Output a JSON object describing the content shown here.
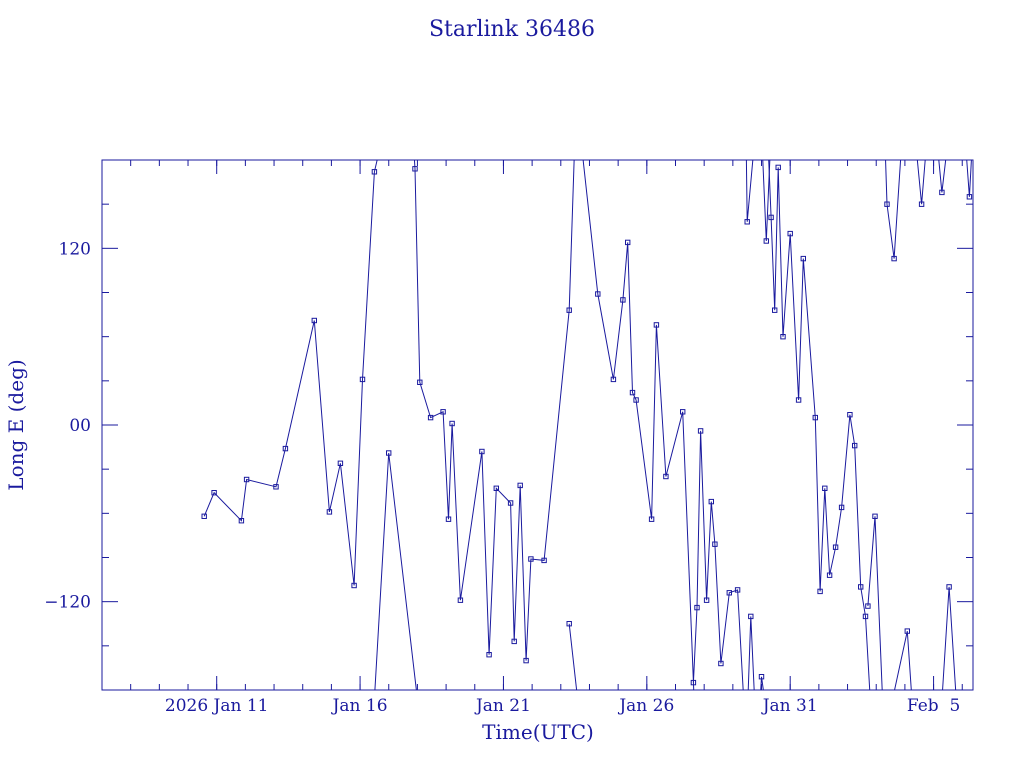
{
  "chart_data": {
    "type": "line",
    "title": "Starlink 36486",
    "xlabel": "Time(UTC)",
    "ylabel": "Long E (deg)",
    "x_tick_labels": [
      "2026 Jan 11",
      "Jan 16",
      "Jan 21",
      "Jan 26",
      "Jan 31",
      "Feb  5"
    ],
    "x_ticks": [
      "2026-01-11",
      "2026-01-16",
      "2026-01-21",
      "2026-01-26",
      "2026-01-31",
      "2026-02-05"
    ],
    "y_tick_labels": [
      "120",
      "00",
      "−120"
    ],
    "y_ticks": [
      120,
      0,
      -120
    ],
    "xlim": [
      "2026-01-07T00:00",
      "2026-02-06T09:00"
    ],
    "ylim": [
      -180,
      180
    ],
    "grid": false,
    "colors": {
      "line": "#1a1a9e",
      "axes": "#1a1a9e",
      "text": "#1a1a9e",
      "background": "#ffffff"
    },
    "series": [
      {
        "segments": [
          [
            [
              "2026-01-10T13:30",
              -62
            ],
            [
              "2026-01-10T21:50",
              -46
            ],
            [
              "2026-01-11T20:40",
              -65
            ],
            [
              "2026-01-12T01:00",
              -37
            ],
            [
              "2026-01-13T01:40",
              -42
            ],
            [
              "2026-01-13T09:30",
              -16
            ],
            [
              "2026-01-14T09:40",
              71
            ],
            [
              "2026-01-14T22:20",
              -59
            ],
            [
              "2026-01-15T07:30",
              -26
            ],
            [
              "2026-01-15T19:00",
              -109
            ],
            [
              "2026-01-16T02:00",
              31
            ],
            [
              "2026-01-16T12:00",
              172
            ],
            [
              "2026-01-16T20:00",
              200
            ]
          ],
          [
            [
              "2026-01-16T11:00",
              -200
            ],
            [
              "2026-01-17T00:00",
              -19
            ],
            [
              "2026-01-18T02:00",
              -200
            ]
          ],
          [
            [
              "2026-01-17T20:00",
              200
            ],
            [
              "2026-01-17T22:00",
              174
            ],
            [
              "2026-01-18T02:00",
              29
            ],
            [
              "2026-01-18T11:00",
              5
            ],
            [
              "2026-01-18T21:30",
              9
            ],
            [
              "2026-01-19T02:00",
              -64
            ],
            [
              "2026-01-19T05:00",
              1
            ],
            [
              "2026-01-19T12:00",
              -119
            ],
            [
              "2026-01-20T06:00",
              -18
            ],
            [
              "2026-01-20T12:00",
              -156
            ],
            [
              "2026-01-20T18:00",
              -43
            ],
            [
              "2026-01-21T06:00",
              -53
            ],
            [
              "2026-01-21T09:00",
              -147
            ],
            [
              "2026-01-21T14:00",
              -41
            ],
            [
              "2026-01-21T19:00",
              -160
            ],
            [
              "2026-01-21T23:00",
              -91
            ],
            [
              "2026-01-22T10:00",
              -92
            ],
            [
              "2026-01-23T07:00",
              78
            ],
            [
              "2026-01-23T12:00",
              200
            ]
          ],
          [
            [
              "2026-01-23T07:00",
              -135
            ],
            [
              "2026-01-23T16:00",
              -200
            ]
          ],
          [
            [
              "2026-01-23T16:00",
              200
            ],
            [
              "2026-01-24T07:00",
              89
            ],
            [
              "2026-01-24T20:00",
              31
            ],
            [
              "2026-01-25T04:00",
              85
            ],
            [
              "2026-01-25T08:00",
              124
            ],
            [
              "2026-01-25T12:00",
              22
            ],
            [
              "2026-01-25T15:00",
              17
            ],
            [
              "2026-01-26T04:00",
              -64
            ],
            [
              "2026-01-26T08:00",
              68
            ],
            [
              "2026-01-26T16:00",
              -35
            ],
            [
              "2026-01-27T06:00",
              9
            ],
            [
              "2026-01-27T16:00",
              -195
            ]
          ],
          [
            [
              "2026-01-27T15:00",
              -175
            ],
            [
              "2026-01-27T18:00",
              -124
            ],
            [
              "2026-01-27T21:00",
              -4
            ],
            [
              "2026-01-28T02:00",
              -119
            ],
            [
              "2026-01-28T06:00",
              -52
            ],
            [
              "2026-01-28T09:00",
              -81
            ],
            [
              "2026-01-28T14:00",
              -162
            ],
            [
              "2026-01-28T21:00",
              -114
            ],
            [
              "2026-01-29T04:00",
              -112
            ],
            [
              "2026-01-29T10:00",
              -200
            ]
          ],
          [
            [
              "2026-01-29T11:00",
              200
            ],
            [
              "2026-01-29T12:00",
              138
            ],
            [
              "2026-01-29T19:00",
              200
            ]
          ],
          [
            [
              "2026-01-29T12:00",
              -200
            ],
            [
              "2026-01-29T15:00",
              -130
            ],
            [
              "2026-01-29T19:00",
              -200
            ]
          ],
          [
            [
              "2026-01-29T22:00",
              -200
            ],
            [
              "2026-01-30T00:00",
              -171
            ],
            [
              "2026-01-30T05:00",
              -200
            ]
          ],
          [
            [
              "2026-01-30T00:00",
              200
            ],
            [
              "2026-01-30T04:00",
              125
            ],
            [
              "2026-01-30T08:00",
              200
            ]
          ],
          [
            [
              "2026-01-30T05:00",
              200
            ],
            [
              "2026-01-30T08:00",
              141
            ],
            [
              "2026-01-30T11:00",
              78
            ],
            [
              "2026-01-30T14:00",
              175
            ],
            [
              "2026-01-30T18:00",
              60
            ],
            [
              "2026-01-31T00:00",
              130
            ],
            [
              "2026-01-31T07:00",
              17
            ],
            [
              "2026-01-31T11:00",
              113
            ],
            [
              "2026-01-31T21:00",
              5
            ],
            [
              "2026-02-01T01:00",
              -113
            ],
            [
              "2026-02-01T05:00",
              -43
            ],
            [
              "2026-02-01T09:00",
              -102
            ],
            [
              "2026-02-01T14:00",
              -83
            ],
            [
              "2026-02-01T19:00",
              -56
            ],
            [
              "2026-02-02T02:00",
              7
            ],
            [
              "2026-02-02T06:00",
              -14
            ],
            [
              "2026-02-02T11:00",
              -110
            ],
            [
              "2026-02-02T15:00",
              -130
            ],
            [
              "2026-02-02T20:00",
              -200
            ]
          ],
          [
            [
              "2026-02-02T17:00",
              -123
            ],
            [
              "2026-02-02T23:00",
              -62
            ],
            [
              "2026-02-03T06:00",
              -200
            ]
          ],
          [
            [
              "2026-02-03T07:00",
              200
            ],
            [
              "2026-02-03T09:00",
              150
            ],
            [
              "2026-02-03T15:00",
              113
            ],
            [
              "2026-02-03T22:00",
              200
            ]
          ],
          [
            [
              "2026-02-03T10:00",
              -200
            ],
            [
              "2026-02-04T02:00",
              -140
            ],
            [
              "2026-02-04T07:00",
              -200
            ]
          ],
          [
            [
              "2026-02-04T08:00",
              200
            ],
            [
              "2026-02-04T14:00",
              150
            ],
            [
              "2026-02-04T19:00",
              200
            ]
          ],
          [
            [
              "2026-02-05T02:00",
              200
            ],
            [
              "2026-02-05T07:00",
              158
            ],
            [
              "2026-02-05T13:00",
              200
            ]
          ],
          [
            [
              "2026-02-05T06:00",
              -200
            ],
            [
              "2026-02-05T13:00",
              -110
            ],
            [
              "2026-02-05T20:00",
              -200
            ]
          ],
          [
            [
              "2026-02-06T02:00",
              200
            ],
            [
              "2026-02-06T06:00",
              155
            ],
            [
              "2026-02-06T09:00",
              200
            ]
          ]
        ]
      }
    ]
  }
}
